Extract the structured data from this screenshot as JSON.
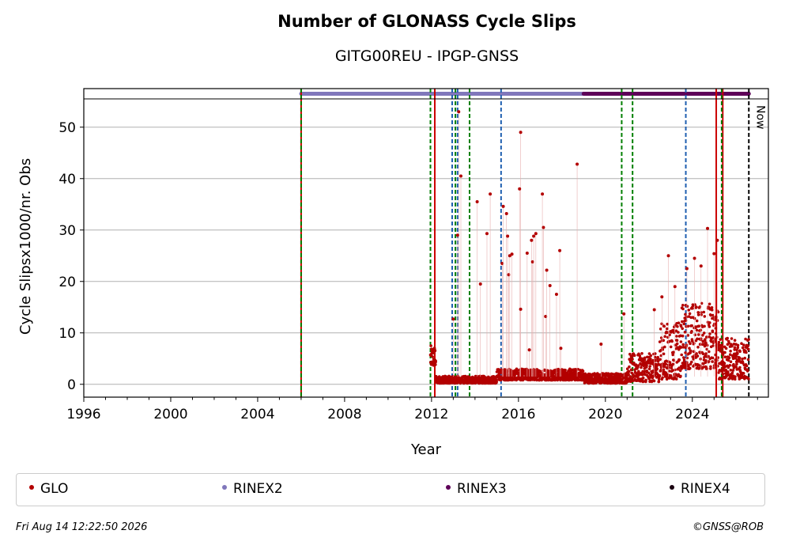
{
  "title": "Number of GLONASS Cycle Slips",
  "subtitle": "GITG00REU - IPGP-GNSS",
  "footer": {
    "timestamp": "Fri Aug 14 12:22:50 2026",
    "credit": "©GNSS@ROB"
  },
  "now_label": "Now",
  "colors": {
    "glo": "#b30000",
    "rinex2": "#8077bb",
    "rinex3": "#5e0058",
    "rinex4": "#1a0010",
    "event_red": "#cc0000",
    "event_green": "#007f00",
    "event_blue": "#1f5fb0",
    "now_line": "#000000"
  },
  "legend": [
    {
      "label": "GLO",
      "color": "#b30000"
    },
    {
      "label": "RINEX2",
      "color": "#8077bb"
    },
    {
      "label": "RINEX3",
      "color": "#5e0058"
    },
    {
      "label": "RINEX4",
      "color": "#1a0010"
    }
  ],
  "chart_data": {
    "type": "scatter",
    "title": "Number of GLONASS Cycle Slips",
    "subtitle": "GITG00REU - IPGP-GNSS",
    "xlabel": "Year",
    "ylabel": "Cycle Slipsx1000/nr. Obs",
    "xlim": [
      1996,
      2027.5
    ],
    "ylim": [
      -2.5,
      55.5
    ],
    "xticks": [
      1996,
      2000,
      2004,
      2008,
      2012,
      2016,
      2020,
      2024
    ],
    "yticks": [
      0,
      10,
      20,
      30,
      40,
      50
    ],
    "grid": "y",
    "legend_position": "below",
    "series": [
      {
        "name": "GLO",
        "color": "#b30000",
        "baseline_segments": [
          {
            "x_start": 2011.95,
            "x_end": 2012.2,
            "y_low": 3.5,
            "y_high": 7.5
          },
          {
            "x_start": 2012.2,
            "x_end": 2015.0,
            "y_low": 0.2,
            "y_high": 1.6
          },
          {
            "x_start": 2015.0,
            "x_end": 2019.0,
            "y_low": 0.8,
            "y_high": 3.0
          },
          {
            "x_start": 2019.0,
            "x_end": 2021.0,
            "y_low": 0.2,
            "y_high": 2.2
          },
          {
            "x_start": 2021.0,
            "x_end": 2022.5,
            "y_low": 0.5,
            "y_high": 6.0
          },
          {
            "x_start": 2022.5,
            "x_end": 2023.5,
            "y_low": 1.0,
            "y_high": 12.0
          },
          {
            "x_start": 2023.5,
            "x_end": 2025.2,
            "y_low": 3.0,
            "y_high": 16.0
          },
          {
            "x_start": 2025.2,
            "x_end": 2026.6,
            "y_low": 1.0,
            "y_high": 9.0
          }
        ],
        "spikes": [
          {
            "x": 2013.0,
            "y": 12.7
          },
          {
            "x": 2013.25,
            "y": 53.0
          },
          {
            "x": 2013.35,
            "y": 40.5
          },
          {
            "x": 2013.2,
            "y": 29.0
          },
          {
            "x": 2014.1,
            "y": 35.5
          },
          {
            "x": 2014.25,
            "y": 19.5
          },
          {
            "x": 2014.55,
            "y": 29.3
          },
          {
            "x": 2014.7,
            "y": 37.0
          },
          {
            "x": 2015.25,
            "y": 23.5
          },
          {
            "x": 2015.3,
            "y": 34.6
          },
          {
            "x": 2015.45,
            "y": 33.2
          },
          {
            "x": 2015.5,
            "y": 28.8
          },
          {
            "x": 2015.55,
            "y": 21.3
          },
          {
            "x": 2015.6,
            "y": 25.0
          },
          {
            "x": 2015.7,
            "y": 25.3
          },
          {
            "x": 2016.1,
            "y": 49.0
          },
          {
            "x": 2016.05,
            "y": 38.0
          },
          {
            "x": 2016.1,
            "y": 14.6
          },
          {
            "x": 2016.4,
            "y": 25.5
          },
          {
            "x": 2016.5,
            "y": 6.7
          },
          {
            "x": 2016.6,
            "y": 28.0
          },
          {
            "x": 2016.65,
            "y": 23.8
          },
          {
            "x": 2016.7,
            "y": 28.8
          },
          {
            "x": 2016.8,
            "y": 29.3
          },
          {
            "x": 2017.1,
            "y": 37.0
          },
          {
            "x": 2017.15,
            "y": 30.5
          },
          {
            "x": 2017.25,
            "y": 13.2
          },
          {
            "x": 2017.3,
            "y": 22.2
          },
          {
            "x": 2017.45,
            "y": 19.2
          },
          {
            "x": 2017.75,
            "y": 17.5
          },
          {
            "x": 2017.9,
            "y": 26.0
          },
          {
            "x": 2017.95,
            "y": 7.0
          },
          {
            "x": 2018.7,
            "y": 42.8
          },
          {
            "x": 2019.8,
            "y": 7.8
          },
          {
            "x": 2020.85,
            "y": 13.7
          },
          {
            "x": 2022.25,
            "y": 14.5
          },
          {
            "x": 2022.6,
            "y": 17.0
          },
          {
            "x": 2022.9,
            "y": 25.0
          },
          {
            "x": 2023.2,
            "y": 19.0
          },
          {
            "x": 2023.75,
            "y": 22.5
          },
          {
            "x": 2024.1,
            "y": 24.5
          },
          {
            "x": 2024.4,
            "y": 23.0
          },
          {
            "x": 2024.7,
            "y": 30.3
          },
          {
            "x": 2025.0,
            "y": 25.4
          },
          {
            "x": 2025.15,
            "y": 28.0
          }
        ]
      }
    ],
    "data_availability": [
      {
        "name": "RINEX2",
        "color": "#8077bb",
        "x_start": 2006.0,
        "x_end": 2019.0
      },
      {
        "name": "RINEX3",
        "color": "#5e0058",
        "x_start": 2019.0,
        "x_end": 2026.6
      }
    ],
    "event_lines": [
      {
        "x": 2006.0,
        "color": "#cc0000",
        "style": "solid"
      },
      {
        "x": 2006.0,
        "color": "#007f00",
        "style": "dashed"
      },
      {
        "x": 2011.95,
        "color": "#007f00",
        "style": "dashed"
      },
      {
        "x": 2012.15,
        "color": "#cc0000",
        "style": "solid"
      },
      {
        "x": 2012.95,
        "color": "#1f5fb0",
        "style": "dashed"
      },
      {
        "x": 2013.1,
        "color": "#007f00",
        "style": "dashed"
      },
      {
        "x": 2013.2,
        "color": "#1f5fb0",
        "style": "dashed"
      },
      {
        "x": 2013.75,
        "color": "#007f00",
        "style": "dashed"
      },
      {
        "x": 2015.2,
        "color": "#1f5fb0",
        "style": "dashed"
      },
      {
        "x": 2020.75,
        "color": "#007f00",
        "style": "dashed"
      },
      {
        "x": 2021.25,
        "color": "#007f00",
        "style": "dashed"
      },
      {
        "x": 2023.7,
        "color": "#1f5fb0",
        "style": "dashed"
      },
      {
        "x": 2025.1,
        "color": "#cc0000",
        "style": "solid"
      },
      {
        "x": 2025.4,
        "color": "#cc0000",
        "style": "solid"
      },
      {
        "x": 2025.35,
        "color": "#007f00",
        "style": "dashed"
      },
      {
        "x": 2026.6,
        "color": "#000000",
        "style": "dashed",
        "label": "Now"
      }
    ]
  }
}
